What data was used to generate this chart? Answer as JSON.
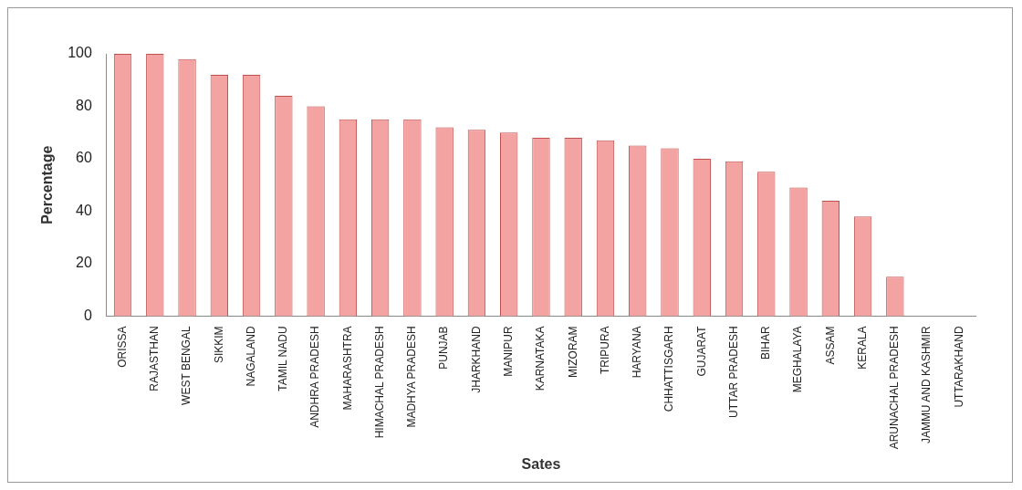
{
  "chart_data": {
    "type": "bar",
    "xlabel": "Sates",
    "ylabel": "Percentage",
    "categories": [
      "ORISSA",
      "RAJASTHAN",
      "WEST BENGAL",
      "SIKKIM",
      "NAGALAND",
      "TAMIL NADU",
      "ANDHRA PRADESH",
      "MAHARASHTRA",
      "HIMACHAL PRADESH",
      "MADHYA PRADESH",
      "PUNJAB",
      "JHARKHAND",
      "MANIPUR",
      "KARNATAKA",
      "MIZORAM",
      "TRIPURA",
      "HARYANA",
      "CHHATTISGARH",
      "GUJARAT",
      "UTTAR PRADESH",
      "BIHAR",
      "MEGHALAYA",
      "ASSAM",
      "KERALA",
      "ARUNACHAL PRADESH",
      "JAMMU AND KASHMIR",
      "UTTARAKHAND"
    ],
    "values": [
      100,
      100,
      98,
      92,
      92,
      84,
      80,
      75,
      75,
      75,
      72,
      71,
      70,
      68,
      68,
      67,
      65,
      64,
      60,
      59,
      55,
      49,
      44,
      38,
      15,
      0,
      0
    ],
    "color": "#f4a3a3",
    "ylim": [
      0,
      100
    ],
    "yticks": [
      0,
      20,
      40,
      60,
      80,
      100
    ],
    "grid": false,
    "legend": false
  }
}
